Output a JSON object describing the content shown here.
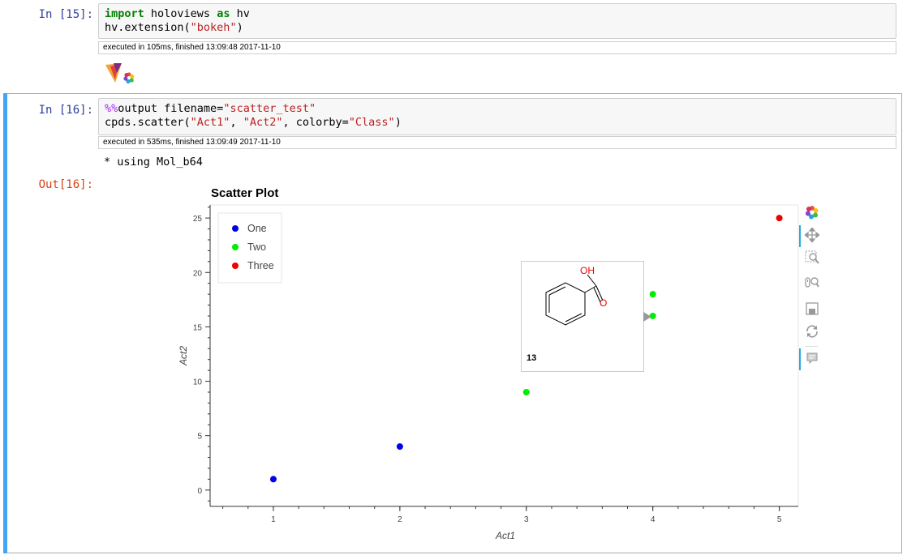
{
  "cell15": {
    "prompt": "In [15]:",
    "code": {
      "kw_import": "import",
      "module": " holoviews ",
      "kw_as": "as",
      "alias": " hv",
      "line2_fn": "hv.extension(",
      "line2_arg": "\"bokeh\"",
      "line2_close": ")"
    },
    "exec": "executed in 105ms, finished 13:09:48 2017-11-10"
  },
  "cell16": {
    "prompt": "In [16]:",
    "code": {
      "magic": "%%",
      "line1_rest": "output filename=",
      "line1_str": "\"scatter_test\"",
      "line2_fn": "cpds.scatter(",
      "line2_a1": "\"Act1\"",
      "sep1": ", ",
      "line2_a2": "\"Act2\"",
      "sep2": ", colorby=",
      "line2_a3": "\"Class\"",
      "line2_close": ")"
    },
    "exec": "executed in 535ms, finished 13:09:49 2017-11-10",
    "stream": "* using Mol_b64",
    "out_prompt": "Out[16]:"
  },
  "chart_data": {
    "type": "scatter",
    "title": "Scatter Plot",
    "xlabel": "Act1",
    "ylabel": "Act2",
    "xlim": [
      0.5,
      5.15
    ],
    "ylim": [
      -1.5,
      26.2
    ],
    "xticks": [
      1,
      2,
      3,
      4,
      5
    ],
    "yticks": [
      0,
      5,
      10,
      15,
      20,
      25
    ],
    "legend_position": "top-left",
    "grid": false,
    "series": [
      {
        "name": "One",
        "color": "#0000ee",
        "x": [
          1,
          2
        ],
        "y": [
          1,
          4
        ]
      },
      {
        "name": "Two",
        "color": "#00ee00",
        "x": [
          3,
          4,
          4
        ],
        "y": [
          9,
          16,
          18
        ]
      },
      {
        "name": "Three",
        "color": "#ee0000",
        "x": [
          5
        ],
        "y": [
          25
        ]
      }
    ]
  },
  "tooltip": {
    "label": "13",
    "oh": "OH",
    "o": "O"
  },
  "toolbar": {
    "logo": "bokeh-logo-icon",
    "tools": [
      "pan-icon",
      "box-zoom-icon",
      "wheel-zoom-icon",
      "save-icon",
      "reset-icon",
      "hover-icon"
    ]
  }
}
